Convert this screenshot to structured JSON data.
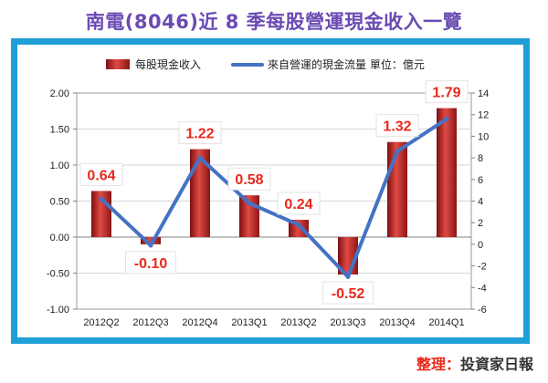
{
  "page_title": "南電(8046)近 8 季每股營運現金收入一覽",
  "credit": {
    "label": "整理：",
    "source": "投資家日報"
  },
  "colors": {
    "bar": "#b51f1f",
    "line": "#4472c4",
    "label": "#e8291c",
    "frame": "#1e9fd6",
    "title": "#6b4bb3"
  },
  "chart_data": {
    "type": "bar+line",
    "title": "南電(8046)近 8 季每股營運現金收入一覽",
    "categories": [
      "2012Q2",
      "2012Q3",
      "2012Q4",
      "2013Q1",
      "2013Q2",
      "2013Q3",
      "2013Q4",
      "2014Q1"
    ],
    "series": [
      {
        "name": "每股現金收入",
        "type": "bar",
        "axis": "left",
        "values": [
          0.64,
          -0.1,
          1.22,
          0.58,
          0.24,
          -0.52,
          1.32,
          1.79
        ],
        "labels": [
          "0.64",
          "-0.10",
          "1.22",
          "0.58",
          "0.24",
          "-0.52",
          "1.32",
          "1.79"
        ]
      },
      {
        "name": "來自營運的現金流量 單位：億元",
        "type": "line",
        "axis": "right",
        "values": [
          4.2,
          -0.1,
          8.0,
          3.8,
          1.8,
          -3.0,
          8.6,
          11.6
        ]
      }
    ],
    "y_left": {
      "min": -1.0,
      "max": 2.0,
      "ticks": [
        "2.00",
        "1.50",
        "1.00",
        "0.50",
        "0.00",
        "-0.50",
        "-1.00"
      ]
    },
    "y_right": {
      "min": -6,
      "max": 14,
      "ticks": [
        "14",
        "12",
        "10",
        "8",
        "6",
        "4",
        "2",
        "0",
        "-2",
        "-4",
        "-6"
      ]
    },
    "legend_position": "top-center",
    "grid": true
  }
}
